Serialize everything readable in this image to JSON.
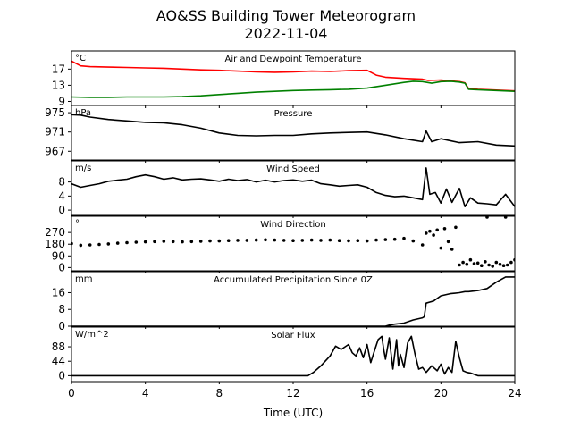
{
  "title_line1": "AO&SS Building Tower Meteorogram",
  "title_line2": "2022-11-04",
  "xlabel": "Time (UTC)",
  "chart_data": {
    "type": "line",
    "x_range": [
      0,
      24
    ],
    "x_ticks": [
      0,
      4,
      8,
      12,
      16,
      20,
      24
    ],
    "panels": [
      {
        "key": "temp",
        "title": "Air and Dewpoint Temperature",
        "unit": "°C",
        "ylim": [
          8,
          21.5
        ],
        "yticks": [
          9,
          13,
          17
        ],
        "series": [
          {
            "name": "",
            "color": "#ff0000",
            "style": "line",
            "x": [
              0,
              0.5,
              1,
              2,
              3,
              4,
              5,
              6,
              7,
              8,
              9,
              10,
              11,
              12,
              13,
              14,
              15,
              16,
              16.5,
              17,
              18,
              19,
              19.3,
              20,
              20.5,
              21,
              21.3,
              21.5,
              22,
              23,
              24
            ],
            "y": [
              19.0,
              17.8,
              17.6,
              17.5,
              17.4,
              17.3,
              17.2,
              17.0,
              16.8,
              16.7,
              16.5,
              16.3,
              16.2,
              16.3,
              16.5,
              16.4,
              16.6,
              16.7,
              15.5,
              15.0,
              14.7,
              14.5,
              14.2,
              14.3,
              14.1,
              13.9,
              13.6,
              12.2,
              12.0,
              11.8,
              11.6
            ]
          },
          {
            "name": "",
            "color": "#008000",
            "style": "line",
            "x": [
              0,
              1,
              2,
              3,
              4,
              5,
              6,
              7,
              8,
              9,
              10,
              11,
              12,
              13,
              14,
              15,
              16,
              17,
              18,
              18.5,
              19,
              19.5,
              20,
              20.5,
              21,
              21.3,
              21.5,
              22,
              23,
              24
            ],
            "y": [
              10.1,
              10.0,
              10.0,
              10.1,
              10.1,
              10.1,
              10.2,
              10.4,
              10.7,
              11.0,
              11.3,
              11.5,
              11.7,
              11.8,
              11.9,
              12.0,
              12.3,
              13.0,
              13.7,
              14.0,
              13.9,
              13.5,
              13.9,
              14.0,
              13.8,
              13.5,
              12.0,
              11.9,
              11.7,
              11.5
            ]
          }
        ]
      },
      {
        "key": "pressure",
        "title": "Pressure",
        "unit": "hPa",
        "ylim": [
          965.2,
          976.5
        ],
        "yticks": [
          967,
          971,
          975
        ],
        "series": [
          {
            "name": "",
            "color": "#000000",
            "style": "line",
            "x": [
              0,
              0.5,
              1,
              2,
              3,
              4,
              5,
              6,
              7,
              8,
              9,
              10,
              11,
              12,
              13,
              14,
              15,
              16,
              17,
              18,
              19,
              19.2,
              19.5,
              20,
              21,
              22,
              23,
              24
            ],
            "y": [
              974.6,
              974.5,
              974.1,
              973.6,
              973.3,
              973.0,
              972.9,
              972.5,
              971.8,
              970.8,
              970.3,
              970.2,
              970.3,
              970.3,
              970.6,
              970.8,
              970.9,
              971.0,
              970.4,
              969.6,
              969.0,
              971.2,
              969.0,
              969.6,
              968.8,
              969.0,
              968.3,
              968.1
            ]
          }
        ]
      },
      {
        "key": "wind_speed",
        "title": "Wind Speed",
        "unit": "m/s",
        "ylim": [
          -1.5,
          14
        ],
        "yticks": [
          0,
          4,
          8
        ],
        "series": [
          {
            "name": "",
            "color": "#000000",
            "style": "line",
            "x": [
              0,
              0.5,
              1,
              1.5,
              2,
              2.5,
              3,
              3.5,
              4,
              4.5,
              5,
              5.5,
              6,
              6.5,
              7,
              7.5,
              8,
              8.5,
              9,
              9.5,
              10,
              10.5,
              11,
              11.5,
              12,
              12.5,
              13,
              13.5,
              14,
              14.5,
              15,
              15.5,
              16,
              16.5,
              17,
              17.5,
              18,
              18.5,
              19,
              19.2,
              19.4,
              19.7,
              20,
              20.3,
              20.6,
              21,
              21.3,
              21.6,
              22,
              22.5,
              23,
              23.5,
              24
            ],
            "y": [
              7.5,
              6.5,
              7.0,
              7.5,
              8.2,
              8.5,
              8.8,
              9.5,
              10.0,
              9.5,
              8.8,
              9.2,
              8.6,
              8.8,
              8.9,
              8.6,
              8.2,
              8.8,
              8.4,
              8.7,
              8.0,
              8.5,
              8.0,
              8.4,
              8.6,
              8.2,
              8.5,
              7.5,
              7.2,
              6.8,
              7.0,
              7.2,
              6.5,
              5.0,
              4.2,
              3.8,
              4.0,
              3.5,
              3.0,
              12.0,
              4.5,
              5.0,
              2.0,
              6.0,
              2.2,
              6.2,
              1.0,
              3.5,
              2.0,
              1.8,
              1.5,
              4.5,
              1.0
            ]
          }
        ]
      },
      {
        "key": "wind_dir",
        "title": "Wind Direction",
        "unit": "°",
        "ylim": [
          -25,
          395
        ],
        "yticks": [
          0,
          90,
          180,
          270
        ],
        "series": [
          {
            "name": "",
            "color": "#000000",
            "style": "points",
            "x": [
              0,
              0.5,
              1,
              1.5,
              2,
              2.5,
              3,
              3.5,
              4,
              4.5,
              5,
              5.5,
              6,
              6.5,
              7,
              7.5,
              8,
              8.5,
              9,
              9.5,
              10,
              10.5,
              11,
              11.5,
              12,
              12.5,
              13,
              13.5,
              14,
              14.5,
              15,
              15.5,
              16,
              16.5,
              17,
              17.5,
              18,
              18.5,
              19,
              19.2,
              19.4,
              19.6,
              19.8,
              20,
              20.2,
              20.4,
              20.6,
              20.8,
              21,
              21.2,
              21.4,
              21.6,
              21.8,
              22,
              22.2,
              22.4,
              22.6,
              22.8,
              23,
              23.2,
              23.4,
              23.6,
              23.8,
              24,
              22.5,
              23.5
            ],
            "y": [
              185,
              172,
              175,
              178,
              182,
              188,
              192,
              195,
              198,
              200,
              202,
              200,
              198,
              200,
              202,
              205,
              205,
              208,
              210,
              210,
              212,
              214,
              212,
              210,
              208,
              210,
              212,
              210,
              212,
              208,
              206,
              208,
              205,
              212,
              215,
              218,
              225,
              205,
              175,
              265,
              280,
              250,
              290,
              150,
              300,
              200,
              140,
              310,
              20,
              40,
              25,
              60,
              30,
              35,
              15,
              45,
              20,
              10,
              40,
              25,
              15,
              20,
              40,
              60,
              388,
              388
            ]
          }
        ]
      },
      {
        "key": "precip",
        "title": "Accumulated Precipitation Since 0Z",
        "unit": "mm",
        "ylim": [
          0,
          26
        ],
        "yticks": [
          0,
          8,
          16
        ],
        "series": [
          {
            "name": "",
            "color": "#000000",
            "style": "line",
            "x": [
              0,
              17,
              17.2,
              17.5,
              18,
              18.5,
              19,
              19.1,
              19.2,
              19.4,
              19.6,
              20,
              20.5,
              21,
              21.3,
              21.5,
              22,
              22.5,
              23,
              23.5,
              24
            ],
            "y": [
              0,
              0,
              0.5,
              1,
              1.5,
              3,
              4,
              4.5,
              11,
              11.5,
              12,
              14.5,
              15.5,
              16,
              16.5,
              16.5,
              17,
              18,
              21,
              23.5,
              23.5
            ]
          }
        ]
      },
      {
        "key": "solar",
        "title": "Solar Flux",
        "unit": "W/m^2",
        "ylim": [
          -18,
          148
        ],
        "yticks": [
          0,
          44,
          88
        ],
        "series": [
          {
            "name": "",
            "color": "#000000",
            "style": "line",
            "x": [
              0,
              12.8,
              13.1,
              13.5,
              14,
              14.3,
              14.6,
              15,
              15.2,
              15.4,
              15.6,
              15.8,
              16,
              16.2,
              16.4,
              16.6,
              16.8,
              16.9,
              17,
              17.2,
              17.4,
              17.6,
              17.7,
              17.8,
              18,
              18.2,
              18.4,
              18.6,
              18.8,
              19,
              19.2,
              19.5,
              19.8,
              20,
              20.2,
              20.4,
              20.6,
              20.8,
              21,
              21.2,
              21.4,
              21.6,
              22,
              23,
              24
            ],
            "y": [
              0,
              0,
              10,
              30,
              60,
              90,
              80,
              95,
              70,
              60,
              85,
              55,
              95,
              40,
              75,
              110,
              120,
              80,
              50,
              115,
              20,
              110,
              30,
              65,
              25,
              100,
              120,
              65,
              20,
              25,
              10,
              30,
              15,
              35,
              5,
              25,
              10,
              105,
              55,
              15,
              10,
              8,
              0,
              0,
              0
            ]
          }
        ]
      }
    ]
  }
}
